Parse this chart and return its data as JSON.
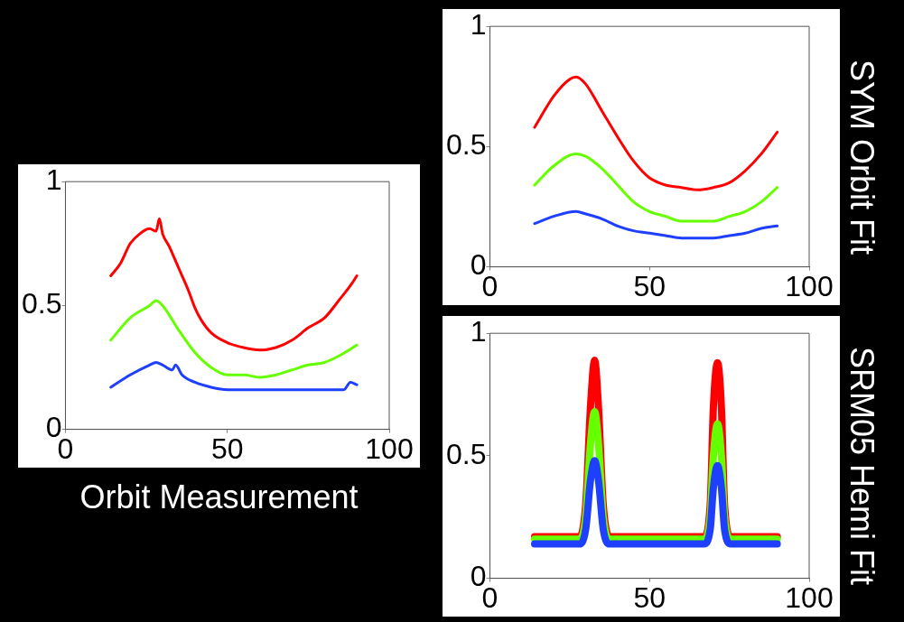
{
  "chart_data": [
    {
      "type": "line",
      "xlabel": "Orbit Measurement",
      "xlim": [
        0,
        100
      ],
      "ylim": [
        0,
        1
      ],
      "xticks": [
        0,
        50,
        100
      ],
      "yticks": [
        0,
        0.5,
        1
      ],
      "grid": false,
      "series": [
        {
          "color": "#ff0000",
          "x": [
            14,
            17,
            20,
            23,
            26,
            28,
            29,
            30,
            32,
            35,
            38,
            40,
            42,
            45,
            50,
            55,
            60,
            65,
            70,
            75,
            80,
            85,
            88,
            90
          ],
          "values": [
            0.62,
            0.67,
            0.75,
            0.79,
            0.81,
            0.8,
            0.85,
            0.79,
            0.74,
            0.65,
            0.56,
            0.49,
            0.44,
            0.39,
            0.35,
            0.33,
            0.32,
            0.33,
            0.36,
            0.41,
            0.45,
            0.53,
            0.58,
            0.62
          ]
        },
        {
          "color": "#66ff00",
          "x": [
            14,
            20,
            26,
            28,
            30,
            35,
            40,
            45,
            50,
            55,
            60,
            65,
            70,
            75,
            80,
            85,
            90
          ],
          "values": [
            0.36,
            0.45,
            0.5,
            0.52,
            0.5,
            0.4,
            0.31,
            0.25,
            0.22,
            0.22,
            0.21,
            0.22,
            0.24,
            0.26,
            0.27,
            0.3,
            0.34
          ]
        },
        {
          "color": "#1f3fff",
          "x": [
            14,
            20,
            26,
            28,
            30,
            33,
            34,
            36,
            40,
            45,
            50,
            60,
            70,
            80,
            86,
            88,
            90
          ],
          "values": [
            0.17,
            0.22,
            0.26,
            0.27,
            0.26,
            0.24,
            0.26,
            0.22,
            0.19,
            0.17,
            0.16,
            0.16,
            0.16,
            0.16,
            0.16,
            0.19,
            0.18
          ]
        }
      ]
    },
    {
      "type": "line",
      "title": "SYM Orbit Fit",
      "xlim": [
        0,
        100
      ],
      "ylim": [
        0,
        1
      ],
      "xticks": [
        0,
        50,
        100
      ],
      "yticks": [
        0,
        0.5,
        1
      ],
      "grid": false,
      "series": [
        {
          "color": "#ff0000",
          "x": [
            14,
            20,
            25,
            27,
            30,
            35,
            40,
            45,
            50,
            55,
            60,
            65,
            70,
            75,
            80,
            85,
            90
          ],
          "values": [
            0.58,
            0.71,
            0.78,
            0.79,
            0.76,
            0.65,
            0.54,
            0.44,
            0.37,
            0.34,
            0.33,
            0.32,
            0.33,
            0.35,
            0.4,
            0.47,
            0.56
          ]
        },
        {
          "color": "#66ff00",
          "x": [
            14,
            20,
            27,
            30,
            35,
            40,
            45,
            50,
            55,
            60,
            65,
            70,
            75,
            80,
            85,
            90
          ],
          "values": [
            0.34,
            0.42,
            0.47,
            0.46,
            0.41,
            0.34,
            0.27,
            0.23,
            0.21,
            0.19,
            0.19,
            0.19,
            0.21,
            0.23,
            0.27,
            0.33
          ]
        },
        {
          "color": "#1f3fff",
          "x": [
            14,
            20,
            27,
            30,
            35,
            40,
            45,
            50,
            55,
            60,
            65,
            70,
            75,
            80,
            85,
            90
          ],
          "values": [
            0.18,
            0.21,
            0.23,
            0.22,
            0.2,
            0.17,
            0.15,
            0.14,
            0.13,
            0.12,
            0.12,
            0.12,
            0.13,
            0.14,
            0.16,
            0.17
          ]
        }
      ]
    },
    {
      "type": "line",
      "title": "SRM05 Hemi Fit",
      "xlim": [
        0,
        100
      ],
      "ylim": [
        0,
        1
      ],
      "xticks": [
        0,
        50,
        100
      ],
      "yticks": [
        0,
        0.5,
        1
      ],
      "grid": false,
      "series": [
        {
          "color": "#ff0000",
          "x": [
            14,
            28,
            30,
            31.5,
            32.8,
            34,
            35.5,
            37.5,
            67,
            69,
            70,
            71.3,
            72.5,
            73.5,
            75.5,
            90
          ],
          "values": [
            0.17,
            0.17,
            0.3,
            0.7,
            0.89,
            0.7,
            0.3,
            0.17,
            0.17,
            0.3,
            0.7,
            0.88,
            0.7,
            0.3,
            0.17,
            0.17
          ]
        },
        {
          "color": "#66ff00",
          "x": [
            14,
            28,
            30,
            31.5,
            32.8,
            34,
            35.5,
            37.5,
            67,
            69,
            70,
            71.3,
            72.5,
            73.5,
            75.5,
            90
          ],
          "values": [
            0.16,
            0.16,
            0.25,
            0.55,
            0.68,
            0.55,
            0.25,
            0.16,
            0.16,
            0.25,
            0.5,
            0.63,
            0.5,
            0.25,
            0.16,
            0.16
          ]
        },
        {
          "color": "#1f3fff",
          "x": [
            14,
            28,
            30,
            31.5,
            32.8,
            34,
            35.5,
            37.5,
            67,
            69,
            70,
            71.3,
            72.5,
            73.5,
            75.5,
            90
          ],
          "values": [
            0.14,
            0.14,
            0.2,
            0.4,
            0.48,
            0.4,
            0.2,
            0.14,
            0.14,
            0.2,
            0.37,
            0.46,
            0.37,
            0.2,
            0.14,
            0.14
          ]
        }
      ]
    }
  ]
}
